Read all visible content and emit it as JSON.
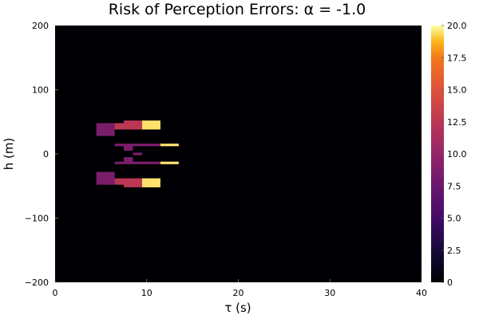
{
  "chart_data": {
    "type": "heatmap",
    "title": "Risk of Perception Errors: α = -1.0",
    "xlabel": "τ (s)",
    "ylabel": "h (m)",
    "xlim": [
      0,
      40
    ],
    "ylim": [
      -200,
      200
    ],
    "x_ticks": [
      0,
      10,
      20,
      30,
      40
    ],
    "x_tick_labels": [
      "0",
      "10",
      "20",
      "30",
      "40"
    ],
    "y_ticks": [
      -200,
      -100,
      0,
      100,
      200
    ],
    "y_tick_labels": [
      "−200",
      "−100",
      "0",
      "100",
      "200"
    ],
    "colorbar": {
      "range": [
        0,
        20
      ],
      "ticks": [
        0,
        2.5,
        5,
        7.5,
        10,
        12.5,
        15,
        17.5,
        20
      ],
      "tick_labels": [
        "0",
        "2.5",
        "5.0",
        "7.5",
        "10.0",
        "12.5",
        "15.0",
        "17.5",
        "20.0"
      ],
      "colormap": "inferno"
    },
    "background_value": 0,
    "cells": [
      {
        "x0": 4.5,
        "x1": 6.5,
        "y0": 28,
        "y1": 48,
        "value": 8.5
      },
      {
        "x0": 6.5,
        "x1": 7.5,
        "y0": 38,
        "y1": 48,
        "value": 12.5
      },
      {
        "x0": 7.5,
        "x1": 9.5,
        "y0": 38,
        "y1": 52,
        "value": 12.5
      },
      {
        "x0": 9.5,
        "x1": 11.5,
        "y0": 38,
        "y1": 52,
        "value": 19.5
      },
      {
        "x0": 6.5,
        "x1": 7.5,
        "y0": 12,
        "y1": 16,
        "value": 8.5
      },
      {
        "x0": 7.5,
        "x1": 8.5,
        "y0": 5,
        "y1": 16,
        "value": 8.5
      },
      {
        "x0": 8.5,
        "x1": 11.5,
        "y0": 12,
        "y1": 16,
        "value": 8.5
      },
      {
        "x0": 11.5,
        "x1": 13.5,
        "y0": 12,
        "y1": 16,
        "value": 19.5
      },
      {
        "x0": 8.5,
        "x1": 9.5,
        "y0": -2,
        "y1": 2,
        "value": 8.5
      },
      {
        "x0": 7.5,
        "x1": 8.5,
        "y0": -16,
        "y1": -5,
        "value": 8.5
      },
      {
        "x0": 6.5,
        "x1": 7.5,
        "y0": -16,
        "y1": -12,
        "value": 8.5
      },
      {
        "x0": 8.5,
        "x1": 11.5,
        "y0": -16,
        "y1": -12,
        "value": 8.5
      },
      {
        "x0": 11.5,
        "x1": 13.5,
        "y0": -16,
        "y1": -12,
        "value": 19.5
      },
      {
        "x0": 4.5,
        "x1": 6.5,
        "y0": -48,
        "y1": -28,
        "value": 8.5
      },
      {
        "x0": 6.5,
        "x1": 7.5,
        "y0": -48,
        "y1": -38,
        "value": 12.5
      },
      {
        "x0": 7.5,
        "x1": 9.5,
        "y0": -52,
        "y1": -38,
        "value": 12.5
      },
      {
        "x0": 9.5,
        "x1": 11.5,
        "y0": -52,
        "y1": -38,
        "value": 19.5
      }
    ]
  }
}
